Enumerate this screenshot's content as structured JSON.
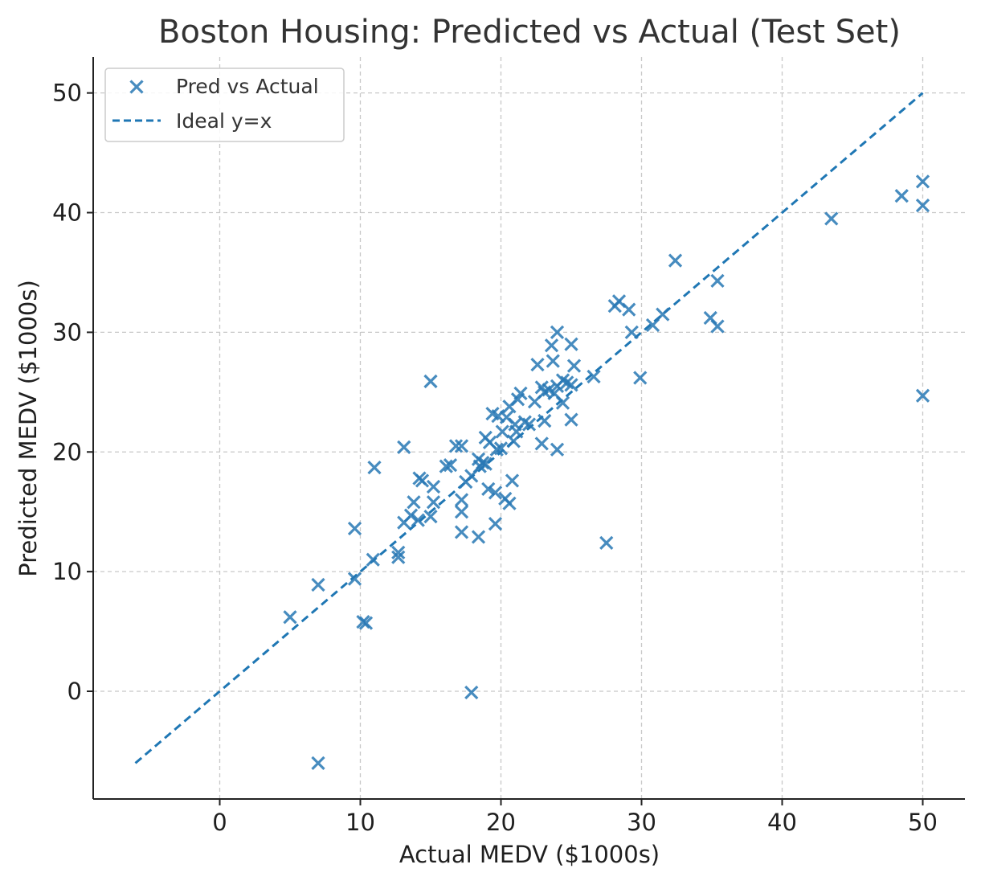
{
  "colors": {
    "series": "#2878b5",
    "ideal_line": "#1f77b4",
    "grid": "#c8c8c8",
    "axis": "#222222"
  },
  "chart_data": {
    "type": "scatter",
    "title": "Boston Housing: Predicted vs Actual (Test Set)",
    "xlabel": "Actual MEDV ($1000s)",
    "ylabel": "Predicted MEDV ($1000s)",
    "xlim": [
      -9,
      53
    ],
    "ylim": [
      -9,
      53
    ],
    "x_ticks": [
      0,
      10,
      20,
      30,
      40,
      50
    ],
    "y_ticks": [
      0,
      10,
      20,
      30,
      40,
      50
    ],
    "grid": true,
    "legend_position": "top-left",
    "series": [
      {
        "name": "Pred vs Actual",
        "marker": "x",
        "color": "#2878b5",
        "points": [
          [
            50.0,
            42.6
          ],
          [
            48.5,
            41.4
          ],
          [
            50.0,
            40.6
          ],
          [
            43.5,
            39.5
          ],
          [
            50.0,
            24.7
          ],
          [
            32.4,
            36.0
          ],
          [
            35.4,
            34.3
          ],
          [
            35.4,
            30.5
          ],
          [
            34.9,
            31.2
          ],
          [
            31.5,
            31.5
          ],
          [
            30.8,
            30.6
          ],
          [
            29.9,
            26.2
          ],
          [
            29.1,
            31.9
          ],
          [
            29.3,
            30.0
          ],
          [
            28.4,
            32.6
          ],
          [
            28.1,
            32.2
          ],
          [
            27.5,
            12.4
          ],
          [
            26.6,
            26.3
          ],
          [
            25.2,
            27.2
          ],
          [
            25.0,
            29.0
          ],
          [
            25.0,
            25.6
          ],
          [
            25.0,
            22.7
          ],
          [
            24.7,
            25.8
          ],
          [
            24.4,
            26.0
          ],
          [
            24.4,
            24.1
          ],
          [
            24.0,
            30.0
          ],
          [
            24.0,
            25.5
          ],
          [
            24.0,
            20.2
          ],
          [
            23.8,
            24.9
          ],
          [
            23.7,
            27.6
          ],
          [
            23.6,
            28.9
          ],
          [
            23.4,
            25.2
          ],
          [
            23.1,
            25.0
          ],
          [
            23.1,
            22.6
          ],
          [
            22.9,
            25.4
          ],
          [
            22.9,
            20.7
          ],
          [
            22.6,
            27.3
          ],
          [
            22.4,
            24.2
          ],
          [
            22.0,
            22.3
          ],
          [
            21.7,
            22.5
          ],
          [
            21.4,
            24.9
          ],
          [
            21.2,
            24.4
          ],
          [
            21.1,
            21.7
          ],
          [
            21.0,
            22.3
          ],
          [
            20.9,
            20.9
          ],
          [
            20.8,
            17.6
          ],
          [
            20.6,
            23.8
          ],
          [
            20.6,
            15.7
          ],
          [
            20.4,
            22.9
          ],
          [
            20.3,
            16.1
          ],
          [
            20.1,
            21.7
          ],
          [
            20.0,
            20.3
          ],
          [
            19.8,
            23.0
          ],
          [
            19.7,
            20.2
          ],
          [
            19.6,
            16.6
          ],
          [
            19.6,
            14.0
          ],
          [
            19.4,
            23.2
          ],
          [
            19.2,
            20.8
          ],
          [
            19.1,
            16.9
          ],
          [
            18.9,
            21.2
          ],
          [
            18.9,
            19.0
          ],
          [
            18.7,
            19.1
          ],
          [
            18.5,
            18.8
          ],
          [
            18.4,
            19.4
          ],
          [
            18.4,
            12.9
          ],
          [
            17.9,
            18.0
          ],
          [
            17.9,
            -0.1
          ],
          [
            17.5,
            17.5
          ],
          [
            17.2,
            20.5
          ],
          [
            17.2,
            16.0
          ],
          [
            17.2,
            15.0
          ],
          [
            17.2,
            13.3
          ],
          [
            16.8,
            20.5
          ],
          [
            16.4,
            18.9
          ],
          [
            16.1,
            18.8
          ],
          [
            15.2,
            17.1
          ],
          [
            15.2,
            15.8
          ],
          [
            15.0,
            25.9
          ],
          [
            15.0,
            14.6
          ],
          [
            14.4,
            17.6
          ],
          [
            14.2,
            17.8
          ],
          [
            14.1,
            14.3
          ],
          [
            13.8,
            15.8
          ],
          [
            13.6,
            14.7
          ],
          [
            13.1,
            20.4
          ],
          [
            13.1,
            14.1
          ],
          [
            12.7,
            11.6
          ],
          [
            12.7,
            11.2
          ],
          [
            11.0,
            18.7
          ],
          [
            10.9,
            11.0
          ],
          [
            10.4,
            5.7
          ],
          [
            10.2,
            5.8
          ],
          [
            9.6,
            13.6
          ],
          [
            9.6,
            9.4
          ],
          [
            7.0,
            8.9
          ],
          [
            7.0,
            -6.0
          ],
          [
            5.0,
            6.2
          ]
        ]
      },
      {
        "name": "Ideal y=x",
        "type": "line",
        "style": "dashed",
        "color": "#1f77b4",
        "x": [
          -6,
          50
        ],
        "y": [
          -6,
          50
        ]
      }
    ]
  }
}
